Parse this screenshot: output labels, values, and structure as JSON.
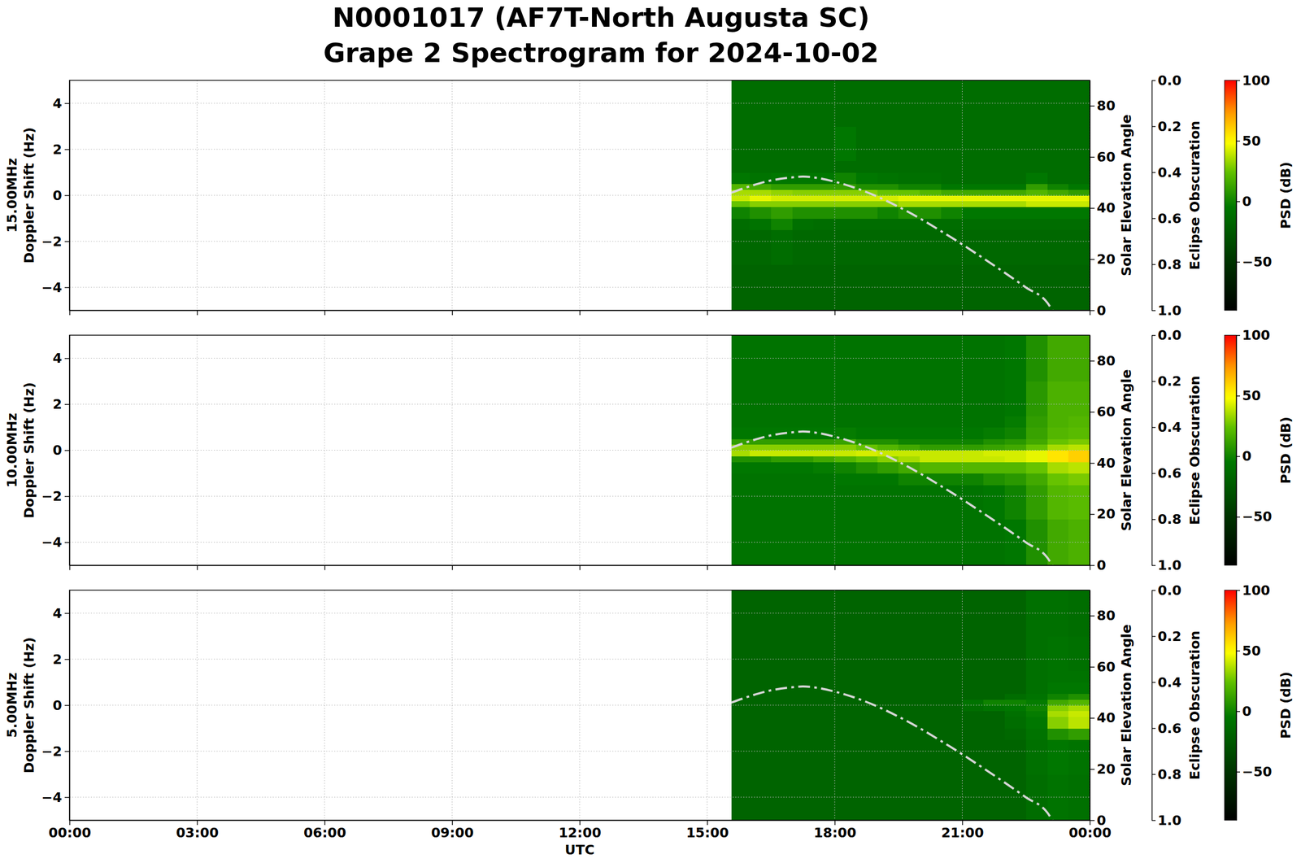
{
  "chart_data": {
    "type": "heatmap",
    "title": [
      "N0001017 (AF7T-North Augusta SC)",
      "Grape 2 Spectrogram for 2024-10-02"
    ],
    "xlabel": "UTC",
    "xlim": [
      0,
      24
    ],
    "xticks": [
      {
        "value": 0,
        "label": "00:00"
      },
      {
        "value": 3,
        "label": "03:00"
      },
      {
        "value": 6,
        "label": "06:00"
      },
      {
        "value": 9,
        "label": "09:00"
      },
      {
        "value": 12,
        "label": "12:00"
      },
      {
        "value": 15,
        "label": "15:00"
      },
      {
        "value": 18,
        "label": "18:00"
      },
      {
        "value": 21,
        "label": "21:00"
      },
      {
        "value": 24,
        "label": "00:00"
      }
    ],
    "ylim": [
      -5,
      5
    ],
    "yticks": [
      {
        "value": -4,
        "label": "−4"
      },
      {
        "value": -2,
        "label": "−2"
      },
      0,
      2,
      4
    ],
    "y2label": "Solar Elevation Angle",
    "y2lim": [
      0,
      90
    ],
    "y2ticks": [
      0,
      20,
      40,
      60,
      80
    ],
    "y3label": "Eclipse Obscuration",
    "y3lim": [
      1,
      0
    ],
    "y3ticks": [
      {
        "value": 0,
        "label": "0.0"
      },
      {
        "value": 0.2,
        "label": "0.2"
      },
      {
        "value": 0.4,
        "label": "0.4"
      },
      {
        "value": 0.6,
        "label": "0.6"
      },
      {
        "value": 0.8,
        "label": "0.8"
      },
      {
        "value": 1,
        "label": "1.0"
      }
    ],
    "colorbar": {
      "label": "PSD (dB)",
      "lim": [
        -90,
        100
      ],
      "ticks": [
        {
          "value": -50,
          "label": "−50"
        },
        0,
        50,
        100
      ]
    },
    "grid": true,
    "x_edges": [
      15.57,
      16,
      16.5,
      17,
      17.5,
      18,
      18.5,
      19,
      19.5,
      20,
      20.5,
      21,
      21.5,
      22,
      22.5,
      23,
      23.5,
      24
    ],
    "y_edges": [
      -5,
      -3,
      -1.5,
      -1,
      -0.5,
      -0.25,
      0,
      0.25,
      0.5,
      1,
      1.5,
      3,
      5
    ],
    "series": [
      {
        "type": "line",
        "axis": "y2",
        "line_style": "dashdot",
        "color": "#d6d6d6",
        "x": [
          15.57,
          16,
          16.5,
          17,
          17.25,
          17.5,
          18,
          18.5,
          19,
          19.5,
          20,
          20.5,
          21,
          21.5,
          22,
          22.5,
          23,
          23.12
        ],
        "values": [
          46,
          48.5,
          50.8,
          52,
          52.3,
          52,
          50.3,
          47.8,
          44.5,
          40.5,
          36,
          31,
          25.8,
          20.3,
          14.7,
          8.9,
          3,
          0
        ]
      }
    ],
    "panels": [
      {
        "ylabel": [
          "15.00MHz",
          "Doppler Shift (Hz)"
        ],
        "z": [
          [
            -18,
            -18,
            -18,
            -18,
            -18,
            -18,
            -18,
            -18,
            -18,
            -18,
            -18,
            -18,
            -18,
            -18,
            -18,
            -18,
            -18
          ],
          [
            -15,
            -15,
            -12,
            -15,
            -15,
            -15,
            -15,
            -15,
            -15,
            -15,
            -15,
            -15,
            -15,
            -15,
            -15,
            -15,
            -15
          ],
          [
            -12,
            -8,
            0,
            -10,
            -12,
            -12,
            -12,
            -12,
            -12,
            -12,
            -12,
            -12,
            -12,
            -12,
            -12,
            -12,
            -12
          ],
          [
            0,
            5,
            10,
            5,
            5,
            5,
            5,
            0,
            5,
            5,
            0,
            -5,
            -5,
            -5,
            -5,
            -5,
            -5
          ],
          [
            25,
            30,
            30,
            30,
            30,
            30,
            30,
            30,
            35,
            35,
            35,
            35,
            35,
            35,
            40,
            40,
            40
          ],
          [
            40,
            45,
            42,
            42,
            42,
            42,
            42,
            42,
            45,
            45,
            45,
            45,
            45,
            45,
            45,
            45,
            45
          ],
          [
            35,
            35,
            32,
            30,
            30,
            30,
            30,
            25,
            25,
            20,
            15,
            15,
            15,
            15,
            20,
            15,
            10
          ],
          [
            20,
            15,
            10,
            10,
            10,
            10,
            5,
            5,
            0,
            0,
            -5,
            -5,
            -5,
            -5,
            10,
            0,
            -5
          ],
          [
            -5,
            -8,
            -5,
            -5,
            -5,
            0,
            -5,
            -8,
            -10,
            -10,
            -12,
            -12,
            -12,
            -12,
            -5,
            -12,
            -12
          ],
          [
            -12,
            -12,
            -12,
            -12,
            -12,
            -12,
            -12,
            -12,
            -12,
            -12,
            -12,
            -12,
            -12,
            -12,
            -12,
            -12,
            -12
          ],
          [
            -12,
            -12,
            -12,
            -12,
            -12,
            -5,
            -12,
            -12,
            -12,
            -12,
            -12,
            -12,
            -12,
            -12,
            -12,
            -12,
            -12
          ],
          [
            -12,
            -12,
            -12,
            -12,
            -12,
            -12,
            -12,
            -12,
            -12,
            -12,
            -12,
            -12,
            -12,
            -12,
            -12,
            -12,
            -12
          ]
        ]
      },
      {
        "ylabel": [
          "10.00MHz",
          "Doppler Shift (Hz)"
        ],
        "z": [
          [
            -8,
            -8,
            -8,
            -8,
            -8,
            -8,
            -8,
            -8,
            -8,
            -8,
            -8,
            -8,
            -8,
            -5,
            5,
            15,
            18
          ],
          [
            -8,
            -8,
            -8,
            -8,
            -8,
            -8,
            -8,
            -8,
            -8,
            -8,
            -8,
            -8,
            -5,
            0,
            10,
            20,
            22
          ],
          [
            -8,
            -8,
            -8,
            -8,
            -8,
            -5,
            -5,
            -5,
            0,
            0,
            0,
            0,
            5,
            8,
            15,
            25,
            28
          ],
          [
            -5,
            -5,
            -5,
            -5,
            -3,
            0,
            5,
            10,
            15,
            20,
            20,
            20,
            20,
            20,
            25,
            35,
            38
          ],
          [
            5,
            5,
            10,
            10,
            15,
            20,
            25,
            30,
            35,
            40,
            40,
            40,
            40,
            42,
            45,
            55,
            60
          ],
          [
            35,
            40,
            40,
            40,
            40,
            40,
            42,
            40,
            40,
            40,
            40,
            40,
            42,
            42,
            45,
            55,
            60
          ],
          [
            30,
            30,
            30,
            30,
            30,
            30,
            25,
            20,
            15,
            10,
            10,
            10,
            12,
            15,
            25,
            35,
            38
          ],
          [
            10,
            10,
            10,
            10,
            10,
            12,
            5,
            5,
            0,
            0,
            0,
            0,
            5,
            8,
            15,
            25,
            28
          ],
          [
            -5,
            -5,
            -5,
            -5,
            -5,
            -3,
            -5,
            -5,
            -5,
            -5,
            -5,
            -5,
            -3,
            0,
            12,
            20,
            22
          ],
          [
            -8,
            -8,
            -8,
            -8,
            -8,
            -8,
            -8,
            -8,
            -8,
            -8,
            -8,
            -8,
            -8,
            -3,
            10,
            18,
            20
          ],
          [
            -8,
            -8,
            -8,
            -8,
            -8,
            -8,
            -8,
            -8,
            -8,
            -8,
            -8,
            -8,
            -8,
            -5,
            8,
            18,
            18
          ],
          [
            -8,
            -8,
            -8,
            -8,
            -8,
            -8,
            -8,
            -8,
            -8,
            -8,
            -8,
            -8,
            -8,
            -5,
            5,
            15,
            15
          ]
        ]
      },
      {
        "ylabel": [
          "5.00MHz",
          "Doppler Shift (Hz)"
        ],
        "z": [
          [
            -18,
            -18,
            -18,
            -18,
            -18,
            -18,
            -18,
            -18,
            -18,
            -18,
            -18,
            -18,
            -18,
            -18,
            -12,
            -8,
            -10
          ],
          [
            -18,
            -18,
            -18,
            -18,
            -18,
            -18,
            -18,
            -18,
            -18,
            -18,
            -18,
            -18,
            -18,
            -18,
            -10,
            -5,
            -8
          ],
          [
            -18,
            -18,
            -18,
            -18,
            -18,
            -18,
            -18,
            -18,
            -18,
            -18,
            -18,
            -18,
            -18,
            -15,
            -8,
            5,
            10
          ],
          [
            -18,
            -18,
            -18,
            -18,
            -18,
            -18,
            -18,
            -18,
            -18,
            -18,
            -18,
            -18,
            -18,
            -12,
            -5,
            30,
            38
          ],
          [
            -18,
            -18,
            -18,
            -18,
            -18,
            -18,
            -18,
            -18,
            -18,
            -18,
            -18,
            -18,
            -18,
            -10,
            -3,
            35,
            40
          ],
          [
            -18,
            -18,
            -18,
            -18,
            -18,
            -18,
            -18,
            -18,
            -18,
            -18,
            -18,
            -12,
            -8,
            -5,
            0,
            30,
            35
          ],
          [
            -18,
            -18,
            -18,
            -18,
            -18,
            -18,
            -18,
            -18,
            -18,
            -18,
            -18,
            -8,
            0,
            0,
            -3,
            15,
            20
          ],
          [
            -18,
            -18,
            -18,
            -18,
            -18,
            -18,
            -18,
            -18,
            -18,
            -18,
            -18,
            -18,
            -18,
            -12,
            -8,
            0,
            5
          ],
          [
            -18,
            -18,
            -18,
            -18,
            -18,
            -18,
            -18,
            -18,
            -18,
            -18,
            -18,
            -18,
            -18,
            -18,
            -10,
            -5,
            -5
          ],
          [
            -18,
            -18,
            -18,
            -18,
            -18,
            -18,
            -18,
            -18,
            -18,
            -18,
            -18,
            -18,
            -18,
            -18,
            -10,
            -8,
            -8
          ],
          [
            -18,
            -18,
            -18,
            -18,
            -18,
            -18,
            -18,
            -18,
            -18,
            -18,
            -18,
            -18,
            -18,
            -18,
            -10,
            -8,
            -10
          ],
          [
            -18,
            -18,
            -18,
            -18,
            -18,
            -18,
            -18,
            -18,
            -18,
            -18,
            -18,
            -18,
            -18,
            -18,
            -10,
            -10,
            -12
          ]
        ]
      }
    ]
  }
}
